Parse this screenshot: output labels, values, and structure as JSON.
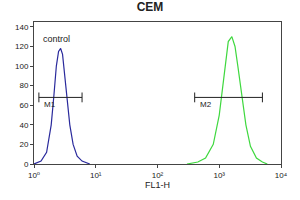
{
  "chart_data": {
    "type": "line",
    "title": "CEM",
    "x_label": "FL1-H",
    "log": "x",
    "grid": false,
    "xlim": [
      1,
      10000
    ],
    "xticks": [
      {
        "value": 1,
        "label": "10⁰"
      },
      {
        "value": 10,
        "label": "10¹"
      },
      {
        "value": 100,
        "label": "10²"
      },
      {
        "value": 1000,
        "label": "10³"
      },
      {
        "value": 10000,
        "label": "10⁴"
      }
    ],
    "ylim": [
      0,
      145
    ],
    "yticks": [
      0,
      20,
      40,
      60,
      80,
      100,
      120,
      140
    ],
    "series": [
      {
        "color": "#2a2a9c",
        "x": [
          1,
          1.3,
          1.6,
          1.9,
          2.1,
          2.3,
          2.5,
          2.7,
          2.9,
          3.1,
          3.4,
          3.8,
          4.3,
          5,
          6,
          7,
          8
        ],
        "values": [
          0,
          3,
          12,
          40,
          70,
          100,
          115,
          118,
          112,
          95,
          70,
          40,
          20,
          8,
          3,
          1,
          0
        ]
      },
      {
        "color": "#3fd83f",
        "x": [
          300,
          450,
          600,
          800,
          1000,
          1200,
          1400,
          1600,
          1800,
          2000,
          2300,
          2700,
          3200,
          4000,
          5000,
          6000
        ],
        "values": [
          0,
          2,
          6,
          20,
          50,
          90,
          125,
          130,
          120,
          100,
          70,
          40,
          18,
          6,
          2,
          0
        ]
      }
    ],
    "annotations": [
      {
        "text": "control",
        "x": 1.3,
        "y": 128
      }
    ],
    "gates": [
      {
        "label": "M1",
        "x": [
          1.2,
          6
        ],
        "y": 68
      },
      {
        "label": "M2",
        "x": [
          400,
          5000
        ],
        "y": 68
      }
    ]
  }
}
